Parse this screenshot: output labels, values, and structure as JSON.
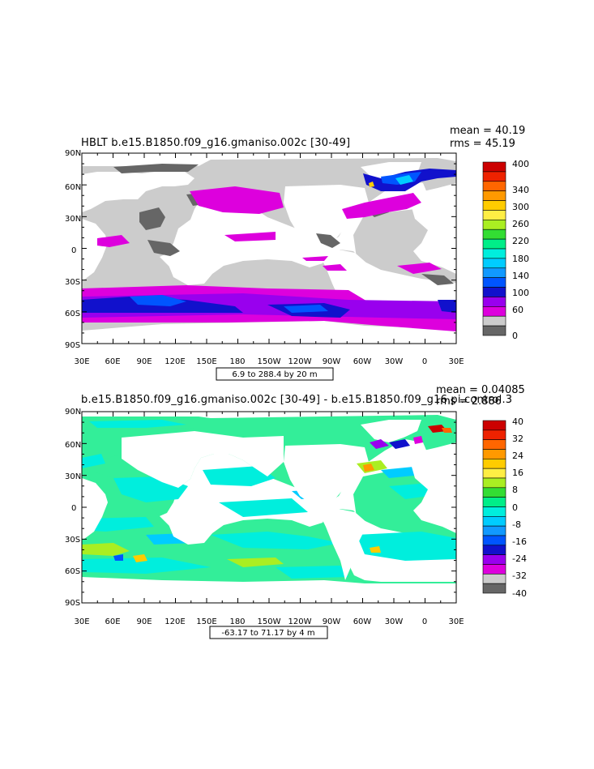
{
  "panels": [
    {
      "id": "top",
      "title": "HBLT b.e15.B1850.f09_g16.gmaniso.002c [30-49]",
      "mean_label": "mean = 40.19",
      "rms_label": "rms = 45.19",
      "info_box": "6.9 to 288.4 by 20 m",
      "lat_labels": [
        "90N",
        "60N",
        "30N",
        "0",
        "30S",
        "60S",
        "90S"
      ],
      "lon_labels": [
        "30E",
        "60E",
        "90E",
        "120E",
        "150E",
        "180",
        "150W",
        "120W",
        "90W",
        "60W",
        "30W",
        "0",
        "30E"
      ],
      "colorbar_labels": [
        "400",
        "340",
        "300",
        "260",
        "220",
        "180",
        "140",
        "100",
        "60",
        "0"
      ],
      "colorbar_colors": [
        "#cc0000",
        "#ee2200",
        "#ff6600",
        "#ff9900",
        "#ffcc00",
        "#ffee44",
        "#aaee22",
        "#33dd33",
        "#00ee88",
        "#00eedd",
        "#00ccff",
        "#1199ff",
        "#0055ff",
        "#1111cc",
        "#9900ee",
        "#dd00dd",
        "#cccccc",
        "#666666"
      ]
    },
    {
      "id": "bottom",
      "title": "b.e15.B1850.f09_g16.gmaniso.002c [30-49] - b.e15.B1850.f09_g16.pi.control.3",
      "mean_label": "mean = 0.04085",
      "rms_label": "rms = 2.886",
      "info_box": "-63.17 to 71.17 by 4 m",
      "lat_labels": [
        "90N",
        "60N",
        "30N",
        "0",
        "30S",
        "60S",
        "90S"
      ],
      "lon_labels": [
        "30E",
        "60E",
        "90E",
        "120E",
        "150E",
        "180",
        "150W",
        "120W",
        "90W",
        "60W",
        "30W",
        "0",
        "30E"
      ],
      "colorbar_labels": [
        "40",
        "32",
        "24",
        "16",
        "8",
        "0",
        "-8",
        "-16",
        "-24",
        "-32",
        "-40"
      ],
      "colorbar_colors": [
        "#cc0000",
        "#ee2200",
        "#ff6600",
        "#ff9900",
        "#ffcc00",
        "#ffee44",
        "#aaee22",
        "#33dd33",
        "#00ee88",
        "#00eedd",
        "#00ccff",
        "#1199ff",
        "#0055ff",
        "#1111cc",
        "#9900ee",
        "#dd00dd",
        "#cccccc",
        "#666666"
      ]
    }
  ],
  "colors": {
    "land": "#ffffff",
    "ocean_top": "#cccccc",
    "ocean_bottom": "#33ee99"
  }
}
